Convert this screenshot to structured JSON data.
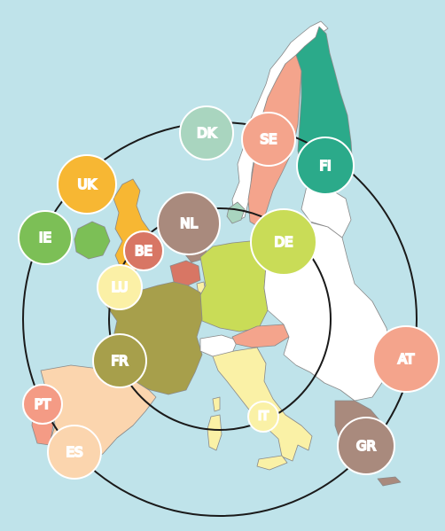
{
  "map": {
    "countries": [
      {
        "code": "UK",
        "color": "#f7b733"
      },
      {
        "code": "IE",
        "color": "#7cbf56"
      },
      {
        "code": "BE",
        "color": "#d87664"
      },
      {
        "code": "LU",
        "color": "#fbf0a6"
      },
      {
        "code": "NL",
        "color": "#a98a7d"
      },
      {
        "code": "DK",
        "color": "#a9d5bf"
      },
      {
        "code": "SE",
        "color": "#f4a48c"
      },
      {
        "code": "FI",
        "color": "#2baa8a"
      },
      {
        "code": "DE",
        "color": "#c9dc57"
      },
      {
        "code": "FR",
        "color": "#a79f4b"
      },
      {
        "code": "PT",
        "color": "#f49b85"
      },
      {
        "code": "ES",
        "color": "#fbd5ae"
      },
      {
        "code": "IT",
        "color": "#faf1a6"
      },
      {
        "code": "AT",
        "color": "#f4a48c"
      },
      {
        "code": "GR",
        "color": "#a98a7d"
      }
    ],
    "colors": {
      "sea": "#bfe3ea",
      "other_land": "#ffffff",
      "norway": "#ffffff",
      "ring": "#1a1a1a"
    }
  }
}
